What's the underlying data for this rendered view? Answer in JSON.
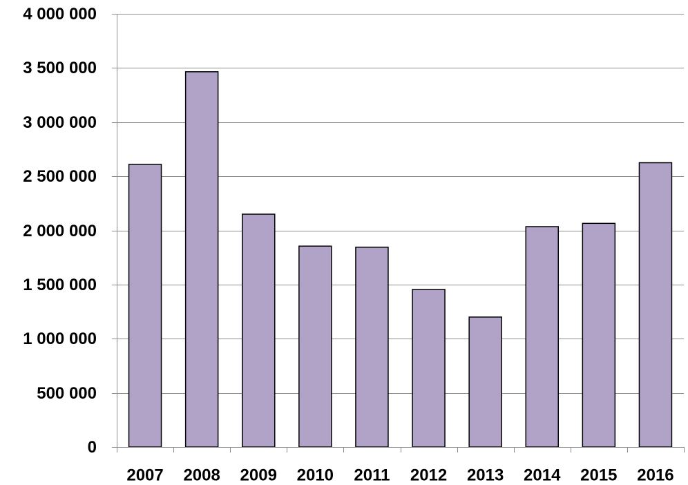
{
  "chart_data": {
    "type": "bar",
    "title": "",
    "xlabel": "",
    "ylabel": "",
    "categories": [
      "2007",
      "2008",
      "2009",
      "2010",
      "2011",
      "2012",
      "2013",
      "2014",
      "2015",
      "2016"
    ],
    "values": [
      2610000,
      3465000,
      2150000,
      1855000,
      1845000,
      1455000,
      1200000,
      2035000,
      2065000,
      2625000
    ],
    "ylim": [
      0,
      4000000
    ],
    "yticks": [
      0,
      500000,
      1000000,
      1500000,
      2000000,
      2500000,
      3000000,
      3500000,
      4000000
    ],
    "ytick_labels": [
      "0",
      "500 000",
      "1 000 000",
      "1 500 000",
      "2 000 000",
      "2 500 000",
      "3 000 000",
      "3 500 000",
      "4 000 000"
    ],
    "grid": true,
    "legend": "none",
    "colors": {
      "bar_fill": "#b1a2c8",
      "bar_stroke": "#000000",
      "grid": "#8c8c8c",
      "axis": "#8c8c8c"
    }
  }
}
